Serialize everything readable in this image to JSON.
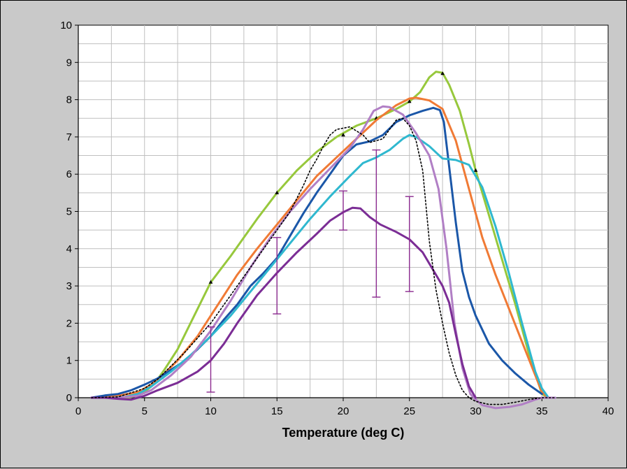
{
  "chart_data": {
    "type": "line",
    "title": "",
    "xlabel": "Temperature (deg C)",
    "ylabel": "",
    "xlim": [
      0,
      40
    ],
    "ylim": [
      0,
      10
    ],
    "x_ticks": [
      0,
      5,
      10,
      15,
      20,
      25,
      30,
      35,
      40
    ],
    "y_ticks": [
      0,
      1,
      2,
      3,
      4,
      5,
      6,
      7,
      8,
      9,
      10
    ],
    "x_minor_grid_step": 2.5,
    "y_grid_step": 0.5,
    "grid": true,
    "legend": "none",
    "colors": {
      "background": "#c9c9c9",
      "plot_area": "#ffffff",
      "grid": "#bfbfbf",
      "axis": "#000000"
    },
    "series": [
      {
        "color": "#97c83c",
        "width": 3,
        "style": "solid",
        "marker_points": [
          [
            10,
            3.1
          ],
          [
            15,
            5.5
          ],
          [
            20,
            7.05
          ],
          [
            22.5,
            7.5
          ],
          [
            25,
            7.95
          ],
          [
            27.5,
            8.7
          ],
          [
            30,
            6.1
          ]
        ],
        "points": [
          [
            1,
            0
          ],
          [
            2,
            0
          ],
          [
            3.5,
            0
          ],
          [
            4.5,
            0.05
          ],
          [
            5,
            0.15
          ],
          [
            5.5,
            0.3
          ],
          [
            6,
            0.5
          ],
          [
            6.5,
            0.75
          ],
          [
            7.5,
            1.3
          ],
          [
            10,
            3.1
          ],
          [
            11.5,
            3.8
          ],
          [
            12.5,
            4.3
          ],
          [
            13.5,
            4.8
          ],
          [
            15,
            5.5
          ],
          [
            16.5,
            6.1
          ],
          [
            18,
            6.6
          ],
          [
            19.5,
            7.0
          ],
          [
            21,
            7.3
          ],
          [
            22.5,
            7.5
          ],
          [
            24,
            7.75
          ],
          [
            25,
            7.95
          ],
          [
            25.8,
            8.2
          ],
          [
            26.5,
            8.6
          ],
          [
            27,
            8.75
          ],
          [
            27.5,
            8.72
          ],
          [
            28,
            8.4
          ],
          [
            28.8,
            7.7
          ],
          [
            29.5,
            6.8
          ],
          [
            30,
            6.1
          ],
          [
            31,
            4.9
          ],
          [
            32,
            3.7
          ],
          [
            33,
            2.5
          ],
          [
            34,
            1.2
          ],
          [
            35,
            0.1
          ],
          [
            35.5,
            0
          ],
          [
            36,
            0
          ]
        ]
      },
      {
        "color": "#f07a35",
        "width": 3,
        "style": "solid",
        "points": [
          [
            1,
            0
          ],
          [
            3,
            0.05
          ],
          [
            4.5,
            0.15
          ],
          [
            5.5,
            0.35
          ],
          [
            6.5,
            0.65
          ],
          [
            7.5,
            1.0
          ],
          [
            9,
            1.65
          ],
          [
            10,
            2.2
          ],
          [
            11,
            2.75
          ],
          [
            12,
            3.3
          ],
          [
            13.5,
            4.0
          ],
          [
            15,
            4.65
          ],
          [
            16.5,
            5.3
          ],
          [
            18,
            5.95
          ],
          [
            19.5,
            6.45
          ],
          [
            21,
            6.95
          ],
          [
            22.5,
            7.45
          ],
          [
            24,
            7.85
          ],
          [
            25,
            8.03
          ],
          [
            25.5,
            8.05
          ],
          [
            26.5,
            7.98
          ],
          [
            27.5,
            7.75
          ],
          [
            28.5,
            6.9
          ],
          [
            29.5,
            5.6
          ],
          [
            30.5,
            4.3
          ],
          [
            31.5,
            3.3
          ],
          [
            32.5,
            2.4
          ],
          [
            33.5,
            1.5
          ],
          [
            34.5,
            0.6
          ],
          [
            35,
            0.15
          ],
          [
            35.5,
            0
          ]
        ]
      },
      {
        "color": "#1b57a8",
        "width": 3,
        "style": "solid",
        "points": [
          [
            1,
            0
          ],
          [
            2,
            0.06
          ],
          [
            3,
            0.1
          ],
          [
            4,
            0.2
          ],
          [
            5,
            0.35
          ],
          [
            6,
            0.52
          ],
          [
            7,
            0.75
          ],
          [
            8,
            0.98
          ],
          [
            9,
            1.3
          ],
          [
            10,
            1.65
          ],
          [
            11,
            2.1
          ],
          [
            12,
            2.5
          ],
          [
            13,
            3.0
          ],
          [
            14,
            3.35
          ],
          [
            15,
            3.75
          ],
          [
            16,
            4.35
          ],
          [
            17,
            4.95
          ],
          [
            18,
            5.5
          ],
          [
            19,
            6.0
          ],
          [
            20,
            6.5
          ],
          [
            21,
            6.8
          ],
          [
            22,
            6.88
          ],
          [
            23,
            7.05
          ],
          [
            24,
            7.4
          ],
          [
            25,
            7.58
          ],
          [
            26,
            7.7
          ],
          [
            26.8,
            7.78
          ],
          [
            27.3,
            7.72
          ],
          [
            27.6,
            7.4
          ],
          [
            28,
            6.2
          ],
          [
            28.5,
            4.7
          ],
          [
            29,
            3.4
          ],
          [
            29.5,
            2.7
          ],
          [
            30,
            2.2
          ],
          [
            31,
            1.45
          ],
          [
            32,
            1.0
          ],
          [
            33,
            0.65
          ],
          [
            34,
            0.35
          ],
          [
            35,
            0.1
          ]
        ]
      },
      {
        "color": "#2fb8cf",
        "width": 3,
        "style": "solid",
        "points": [
          [
            1,
            0
          ],
          [
            2.5,
            0
          ],
          [
            3.5,
            0.02
          ],
          [
            4.5,
            0.1
          ],
          [
            5.5,
            0.3
          ],
          [
            7,
            0.7
          ],
          [
            8.5,
            1.15
          ],
          [
            10,
            1.65
          ],
          [
            11.5,
            2.2
          ],
          [
            13,
            2.85
          ],
          [
            14.5,
            3.5
          ],
          [
            16,
            4.15
          ],
          [
            17.5,
            4.8
          ],
          [
            19,
            5.4
          ],
          [
            20.5,
            5.95
          ],
          [
            21.5,
            6.3
          ],
          [
            22.5,
            6.45
          ],
          [
            23.5,
            6.65
          ],
          [
            24.5,
            6.95
          ],
          [
            25,
            7.05
          ],
          [
            25.5,
            7.0
          ],
          [
            26.5,
            6.75
          ],
          [
            27.5,
            6.42
          ],
          [
            28.5,
            6.38
          ],
          [
            29.5,
            6.25
          ],
          [
            30.5,
            5.65
          ],
          [
            31.5,
            4.6
          ],
          [
            32.5,
            3.35
          ],
          [
            33.5,
            2.0
          ],
          [
            34.5,
            0.7
          ],
          [
            35,
            0.25
          ],
          [
            35.5,
            0
          ],
          [
            36,
            0
          ]
        ]
      },
      {
        "color": "#b17fc5",
        "width": 3,
        "style": "solid",
        "points": [
          [
            1,
            0
          ],
          [
            3,
            0
          ],
          [
            4.5,
            0.05
          ],
          [
            5.5,
            0.2
          ],
          [
            7,
            0.6
          ],
          [
            8.5,
            1.1
          ],
          [
            10,
            1.8
          ],
          [
            11.5,
            2.6
          ],
          [
            13,
            3.5
          ],
          [
            14.5,
            4.3
          ],
          [
            16,
            5.0
          ],
          [
            17.5,
            5.6
          ],
          [
            19,
            6.15
          ],
          [
            20.5,
            6.7
          ],
          [
            21.5,
            7.2
          ],
          [
            22.3,
            7.7
          ],
          [
            23,
            7.82
          ],
          [
            23.5,
            7.8
          ],
          [
            24.5,
            7.6
          ],
          [
            25.5,
            7.1
          ],
          [
            26.5,
            6.5
          ],
          [
            27.2,
            5.6
          ],
          [
            27.8,
            4.0
          ],
          [
            28.4,
            2.0
          ],
          [
            29,
            0.8
          ],
          [
            29.6,
            0.1
          ],
          [
            30,
            -0.05
          ],
          [
            30.5,
            -0.2
          ],
          [
            31.5,
            -0.28
          ],
          [
            32.5,
            -0.25
          ],
          [
            33.5,
            -0.18
          ],
          [
            34.5,
            -0.05
          ],
          [
            35,
            0
          ],
          [
            36,
            0
          ]
        ]
      },
      {
        "color": "#7b2d95",
        "width": 3,
        "style": "solid",
        "points": [
          [
            1,
            0
          ],
          [
            2,
            0
          ],
          [
            3,
            -0.03
          ],
          [
            4,
            -0.05
          ],
          [
            5,
            0.05
          ],
          [
            6,
            0.2
          ],
          [
            7.5,
            0.4
          ],
          [
            9,
            0.7
          ],
          [
            10,
            1.0
          ],
          [
            11,
            1.45
          ],
          [
            12,
            2.0
          ],
          [
            13.5,
            2.75
          ],
          [
            15,
            3.35
          ],
          [
            16.5,
            3.9
          ],
          [
            18,
            4.4
          ],
          [
            19,
            4.75
          ],
          [
            20,
            4.98
          ],
          [
            20.7,
            5.1
          ],
          [
            21.3,
            5.08
          ],
          [
            22,
            4.85
          ],
          [
            22.8,
            4.65
          ],
          [
            24,
            4.45
          ],
          [
            25,
            4.25
          ],
          [
            26,
            3.9
          ],
          [
            27,
            3.3
          ],
          [
            27.5,
            3.0
          ],
          [
            28,
            2.55
          ],
          [
            28.5,
            1.7
          ],
          [
            29,
            0.9
          ],
          [
            29.5,
            0.3
          ],
          [
            30,
            0
          ]
        ]
      },
      {
        "color": "#000000",
        "width": 1.6,
        "style": "dotted",
        "points": [
          [
            1,
            0
          ],
          [
            3,
            0.02
          ],
          [
            5,
            0.25
          ],
          [
            6,
            0.5
          ],
          [
            7,
            0.85
          ],
          [
            8,
            1.2
          ],
          [
            9,
            1.6
          ],
          [
            10,
            2.0
          ],
          [
            11,
            2.5
          ],
          [
            12,
            3.0
          ],
          [
            13,
            3.5
          ],
          [
            14,
            4.0
          ],
          [
            15,
            4.5
          ],
          [
            16,
            5.0
          ],
          [
            17,
            5.7
          ],
          [
            17.5,
            6.1
          ],
          [
            18,
            6.4
          ],
          [
            18.5,
            6.75
          ],
          [
            19,
            7.05
          ],
          [
            19.5,
            7.2
          ],
          [
            20.5,
            7.27
          ],
          [
            21.5,
            7.05
          ],
          [
            22,
            6.85
          ],
          [
            22.5,
            6.9
          ],
          [
            23,
            6.95
          ],
          [
            23.5,
            7.2
          ],
          [
            24,
            7.45
          ],
          [
            24.5,
            7.5
          ],
          [
            25,
            7.3
          ],
          [
            25.5,
            6.9
          ],
          [
            26,
            6.1
          ],
          [
            26.5,
            4.2
          ],
          [
            27,
            2.9
          ],
          [
            27.5,
            2.0
          ],
          [
            28,
            1.2
          ],
          [
            28.5,
            0.6
          ],
          [
            29,
            0.2
          ],
          [
            29.5,
            0.0
          ],
          [
            30,
            -0.1
          ],
          [
            31,
            -0.18
          ],
          [
            32,
            -0.18
          ],
          [
            33,
            -0.12
          ],
          [
            34,
            -0.05
          ],
          [
            35,
            0
          ],
          [
            36,
            0
          ]
        ]
      }
    ],
    "error_bars": {
      "color": "#8b2a8f",
      "bars": [
        {
          "x": 10,
          "low": 0.15,
          "high": 1.9
        },
        {
          "x": 15,
          "low": 2.25,
          "high": 4.3
        },
        {
          "x": 20,
          "low": 4.5,
          "high": 5.55
        },
        {
          "x": 22.5,
          "low": 2.7,
          "high": 6.65
        },
        {
          "x": 25,
          "low": 2.85,
          "high": 5.4
        }
      ]
    }
  }
}
